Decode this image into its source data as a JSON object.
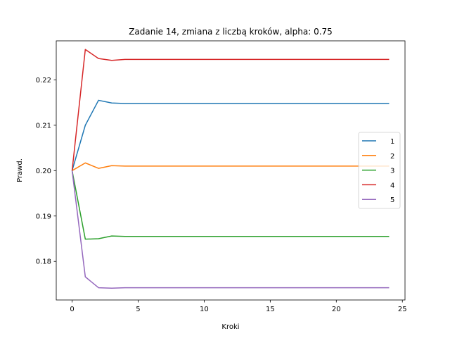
{
  "chart_data": {
    "type": "line",
    "title": "Zadanie 14, zmiana z liczbą kroków, alpha: 0.75",
    "xlabel": "Kroki",
    "ylabel": "Prawd.",
    "xlim": [
      -1.2,
      25.2
    ],
    "ylim": [
      0.1715,
      0.2286
    ],
    "xticks": [
      0,
      5,
      10,
      15,
      20,
      25
    ],
    "xtick_labels": [
      "0",
      "5",
      "10",
      "15",
      "20",
      "25"
    ],
    "yticks": [
      0.18,
      0.19,
      0.2,
      0.21,
      0.22
    ],
    "ytick_labels": [
      "0.18",
      "0.19",
      "0.20",
      "0.21",
      "0.22"
    ],
    "grid": false,
    "legend_position": "center-right",
    "x": [
      0,
      1,
      2,
      3,
      4,
      5,
      6,
      7,
      8,
      9,
      10,
      11,
      12,
      13,
      14,
      15,
      16,
      17,
      18,
      19,
      20,
      21,
      22,
      23,
      24
    ],
    "series": [
      {
        "name": "1",
        "color": "#1f77b4",
        "values": [
          0.2,
          0.21,
          0.2155,
          0.2149,
          0.2148,
          0.2148,
          0.2148,
          0.2148,
          0.2148,
          0.2148,
          0.2148,
          0.2148,
          0.2148,
          0.2148,
          0.2148,
          0.2148,
          0.2148,
          0.2148,
          0.2148,
          0.2148,
          0.2148,
          0.2148,
          0.2148,
          0.2148,
          0.2148
        ]
      },
      {
        "name": "2",
        "color": "#ff7f0e",
        "values": [
          0.2,
          0.2017,
          0.2005,
          0.2011,
          0.201,
          0.201,
          0.201,
          0.201,
          0.201,
          0.201,
          0.201,
          0.201,
          0.201,
          0.201,
          0.201,
          0.201,
          0.201,
          0.201,
          0.201,
          0.201,
          0.201,
          0.201,
          0.201,
          0.201,
          0.201
        ]
      },
      {
        "name": "3",
        "color": "#2ca02c",
        "values": [
          0.2,
          0.1849,
          0.185,
          0.1856,
          0.1855,
          0.1855,
          0.1855,
          0.1855,
          0.1855,
          0.1855,
          0.1855,
          0.1855,
          0.1855,
          0.1855,
          0.1855,
          0.1855,
          0.1855,
          0.1855,
          0.1855,
          0.1855,
          0.1855,
          0.1855,
          0.1855,
          0.1855,
          0.1855
        ]
      },
      {
        "name": "4",
        "color": "#d62728",
        "values": [
          0.2,
          0.2267,
          0.2247,
          0.2243,
          0.2245,
          0.2245,
          0.2245,
          0.2245,
          0.2245,
          0.2245,
          0.2245,
          0.2245,
          0.2245,
          0.2245,
          0.2245,
          0.2245,
          0.2245,
          0.2245,
          0.2245,
          0.2245,
          0.2245,
          0.2245,
          0.2245,
          0.2245,
          0.2245
        ]
      },
      {
        "name": "5",
        "color": "#9467bd",
        "values": [
          0.2,
          0.1766,
          0.1742,
          0.1741,
          0.1742,
          0.1742,
          0.1742,
          0.1742,
          0.1742,
          0.1742,
          0.1742,
          0.1742,
          0.1742,
          0.1742,
          0.1742,
          0.1742,
          0.1742,
          0.1742,
          0.1742,
          0.1742,
          0.1742,
          0.1742,
          0.1742,
          0.1742,
          0.1742
        ]
      }
    ]
  }
}
